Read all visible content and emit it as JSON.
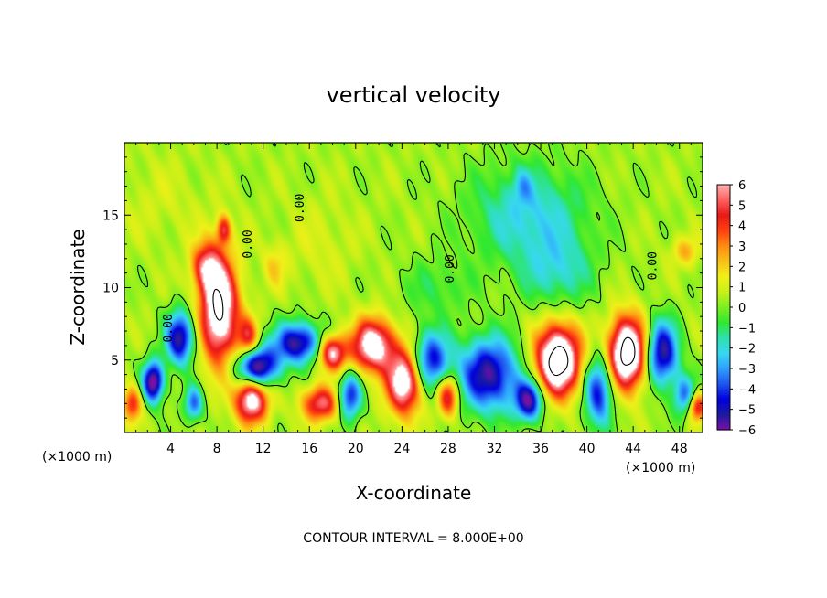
{
  "chart_data": {
    "type": "heatmap",
    "title": "vertical velocity",
    "xlabel": "X-coordinate",
    "ylabel": "Z-coordinate",
    "x_unit": "(×1000 m)",
    "x_unit_right": "(×1000 m)",
    "xlim": [
      0,
      50
    ],
    "ylim": [
      0,
      20
    ],
    "x_ticks": [
      "4",
      "8",
      "12",
      "16",
      "20",
      "24",
      "28",
      "32",
      "36",
      "40",
      "44",
      "48"
    ],
    "y_ticks": [
      "5",
      "10",
      "15"
    ],
    "colorbar": {
      "ticks": [
        "6",
        "5",
        "4",
        "3",
        "2",
        "1",
        "0",
        "−1",
        "−2",
        "−3",
        "−4",
        "−5",
        "−6"
      ],
      "range": [
        -6,
        6
      ],
      "colors": [
        "#7a0fa8",
        "#1b1ba0",
        "#0000e0",
        "#1e56ee",
        "#2ea0ff",
        "#38d8f0",
        "#2ee0b0",
        "#30e830",
        "#7cf020",
        "#c8f018",
        "#f0f018",
        "#f8c018",
        "#ff8c10",
        "#ff4010",
        "#e81818",
        "#ff6060",
        "#ffb0b0"
      ]
    },
    "contour_labels": [
      "0.00",
      "0.00",
      "0.00",
      "0.00",
      "0.00"
    ],
    "footer": "CONTOUR INTERVAL = 8.000E+00",
    "field": {
      "background": 0.4,
      "cells": [
        {
          "x": 8.2,
          "z": 8.5,
          "sx": 1.6,
          "sz": 3.6,
          "a": 8
        },
        {
          "x": 7.0,
          "z": 11.5,
          "sx": 1.2,
          "sz": 1.6,
          "a": 4
        },
        {
          "x": 8.6,
          "z": 14.0,
          "sx": 0.6,
          "sz": 1.0,
          "a": 4
        },
        {
          "x": 10.7,
          "z": 6.5,
          "sx": 0.9,
          "sz": 1.4,
          "a": 4
        },
        {
          "x": 11.0,
          "z": 2.3,
          "sx": 1.4,
          "sz": 1.6,
          "a": 7
        },
        {
          "x": 17.0,
          "z": 2.0,
          "sx": 1.6,
          "sz": 1.2,
          "a": 5
        },
        {
          "x": 18.0,
          "z": 5.5,
          "sx": 1.2,
          "sz": 1.2,
          "a": 6
        },
        {
          "x": 21.5,
          "z": 6.0,
          "sx": 1.8,
          "sz": 1.8,
          "a": 7
        },
        {
          "x": 24.2,
          "z": 3.5,
          "sx": 1.5,
          "sz": 2.2,
          "a": 7
        },
        {
          "x": 28.0,
          "z": 2.5,
          "sx": 0.9,
          "sz": 1.4,
          "a": 5
        },
        {
          "x": 37.5,
          "z": 5.0,
          "sx": 1.9,
          "sz": 2.4,
          "a": 9
        },
        {
          "x": 43.5,
          "z": 5.5,
          "sx": 1.6,
          "sz": 2.4,
          "a": 9
        },
        {
          "x": 48.5,
          "z": 12.5,
          "sx": 1.2,
          "sz": 1.0,
          "a": 2
        },
        {
          "x": 49.5,
          "z": 1.8,
          "sx": 0.8,
          "sz": 1.0,
          "a": 5
        },
        {
          "x": 13.0,
          "z": 11.5,
          "sx": 1.0,
          "sz": 1.5,
          "a": 1.5
        },
        {
          "x": 0.7,
          "z": 2.0,
          "sx": 0.8,
          "sz": 1.2,
          "a": 4
        },
        {
          "x": 2.5,
          "z": 3.5,
          "sx": 0.9,
          "sz": 1.4,
          "a": -7
        },
        {
          "x": 4.8,
          "z": 6.5,
          "sx": 1.2,
          "sz": 1.8,
          "a": -6
        },
        {
          "x": 6.0,
          "z": 2.0,
          "sx": 0.8,
          "sz": 1.2,
          "a": -4
        },
        {
          "x": 11.5,
          "z": 4.5,
          "sx": 1.8,
          "sz": 1.4,
          "a": -7
        },
        {
          "x": 15.0,
          "z": 6.2,
          "sx": 2.0,
          "sz": 1.4,
          "a": -6
        },
        {
          "x": 19.5,
          "z": 2.5,
          "sx": 1.0,
          "sz": 1.6,
          "a": -5
        },
        {
          "x": 26.5,
          "z": 5.0,
          "sx": 1.6,
          "sz": 2.0,
          "a": -5
        },
        {
          "x": 31.5,
          "z": 4.0,
          "sx": 2.6,
          "sz": 2.5,
          "a": -6
        },
        {
          "x": 35.0,
          "z": 2.2,
          "sx": 1.2,
          "sz": 1.4,
          "a": -6
        },
        {
          "x": 41.0,
          "z": 2.8,
          "sx": 1.2,
          "sz": 2.4,
          "a": -5
        },
        {
          "x": 46.5,
          "z": 5.5,
          "sx": 1.4,
          "sz": 2.2,
          "a": -6
        },
        {
          "x": 48.5,
          "z": 2.5,
          "sx": 1.0,
          "sz": 1.4,
          "a": -4
        },
        {
          "x": 35.0,
          "z": 15.0,
          "sx": 5.0,
          "sz": 3.5,
          "a": -2.6
        },
        {
          "x": 37.5,
          "z": 11.0,
          "sx": 3.0,
          "sz": 2.5,
          "a": -2
        },
        {
          "x": 34.5,
          "z": 17.0,
          "sx": 0.8,
          "sz": 1.2,
          "a": -1.5
        },
        {
          "x": 27.0,
          "z": 10.0,
          "sx": 3.0,
          "sz": 2.0,
          "a": -1.2
        },
        {
          "x": 17.0,
          "z": 13.0,
          "sx": 3.0,
          "sz": 3.0,
          "a": 0.6
        },
        {
          "x": 3.0,
          "z": 16.0,
          "sx": 4.0,
          "sz": 3.0,
          "a": 0.5
        }
      ]
    }
  }
}
